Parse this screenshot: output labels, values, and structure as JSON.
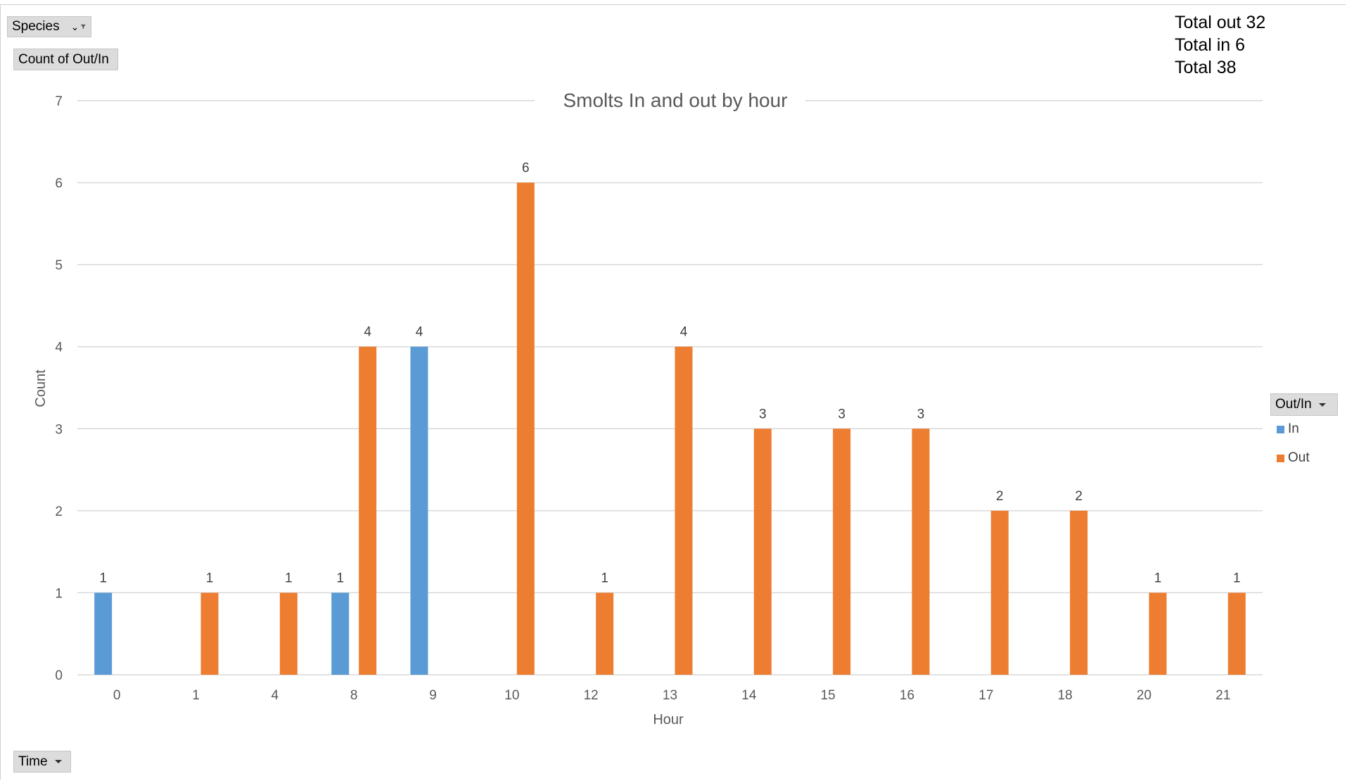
{
  "pivot": {
    "species_label": "Species",
    "count_label": "Count of Out/In",
    "time_label": "Time",
    "legend_filter_label": "Out/In"
  },
  "summary": {
    "total_out": "Total out 32",
    "total_in": "Total in 6",
    "total": "Total 38"
  },
  "legend": {
    "in_label": "In",
    "out_label": "Out"
  },
  "colors": {
    "in": "#5B9BD5",
    "out": "#ED7D31",
    "grid": "#d9d9d9"
  },
  "chart_data": {
    "type": "bar",
    "title": "Smolts In and out by hour",
    "xlabel": "Hour",
    "ylabel": "Count",
    "ylim": [
      0,
      7
    ],
    "yticks": [
      0,
      1,
      2,
      3,
      4,
      5,
      6,
      7
    ],
    "grid": true,
    "legend_position": "right",
    "categories": [
      "0",
      "1",
      "4",
      "8",
      "9",
      "10",
      "12",
      "13",
      "14",
      "15",
      "16",
      "17",
      "18",
      "20",
      "21"
    ],
    "series": [
      {
        "name": "In",
        "values": [
          1,
          null,
          null,
          1,
          4,
          null,
          null,
          null,
          null,
          null,
          null,
          null,
          null,
          null,
          null
        ]
      },
      {
        "name": "Out",
        "values": [
          null,
          1,
          1,
          4,
          null,
          6,
          1,
          4,
          3,
          3,
          3,
          2,
          2,
          1,
          1
        ]
      }
    ]
  }
}
